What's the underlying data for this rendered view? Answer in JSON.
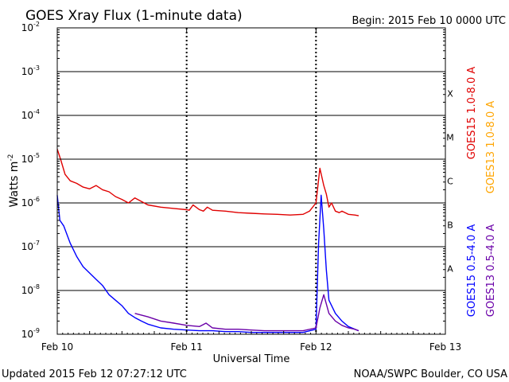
{
  "header": {
    "title": "GOES Xray Flux (1-minute data)",
    "begin": "Begin:  2015 Feb 10 0000 UTC"
  },
  "footer": {
    "updated": "Updated 2015 Feb 12 07:27:12 UTC",
    "credit": "NOAA/SWPC Boulder, CO USA"
  },
  "colors": {
    "goes15_long": "#e00000",
    "goes13_long": "#ffa500",
    "goes15_short": "#0000ff",
    "goes13_short": "#6a00a8"
  },
  "chart_data": {
    "type": "line",
    "title": "GOES Xray Flux (1-minute data)",
    "xlabel": "Universal Time",
    "ylabel": "Watts m",
    "ylabel_exponent": "-2",
    "yscale": "log",
    "ylim": [
      1e-09,
      0.01
    ],
    "xlim": [
      "Feb 10",
      "Feb 13"
    ],
    "x_ticks": [
      "Feb 10",
      "Feb 11",
      "Feb 12",
      "Feb 13"
    ],
    "y_tick_labels": [
      {
        "base": "10",
        "exp": "-9"
      },
      {
        "base": "10",
        "exp": "-8"
      },
      {
        "base": "10",
        "exp": "-7"
      },
      {
        "base": "10",
        "exp": "-6"
      },
      {
        "base": "10",
        "exp": "-5"
      },
      {
        "base": "10",
        "exp": "-4"
      },
      {
        "base": "10",
        "exp": "-3"
      },
      {
        "base": "10",
        "exp": "-2"
      }
    ],
    "flare_classes": [
      {
        "label": "A",
        "level": 1e-08
      },
      {
        "label": "B",
        "level": 1e-07
      },
      {
        "label": "C",
        "level": 1e-06
      },
      {
        "label": "M",
        "level": 1e-05
      },
      {
        "label": "X",
        "level": 0.0001
      }
    ],
    "grid": true,
    "legend": [
      {
        "name": "GOES15 1.0-8.0 A",
        "color": "#e00000"
      },
      {
        "name": "GOES13 1.0-8.0 A",
        "color": "#ffa500"
      },
      {
        "name": "GOES15 0.5-4.0 A",
        "color": "#0000ff"
      },
      {
        "name": "GOES13 0.5-4.0 A",
        "color": "#6a00a8"
      }
    ],
    "series": [
      {
        "name": "GOES15 1.0-8.0 A",
        "color": "#e00000",
        "x": [
          0,
          0.03,
          0.06,
          0.1,
          0.15,
          0.2,
          0.25,
          0.3,
          0.35,
          0.4,
          0.45,
          0.5,
          0.55,
          0.6,
          0.7,
          0.8,
          0.9,
          1.0,
          1.02,
          1.05,
          1.1,
          1.13,
          1.16,
          1.2,
          1.3,
          1.4,
          1.5,
          1.6,
          1.7,
          1.8,
          1.9,
          1.95,
          2.0,
          2.03,
          2.06,
          2.08,
          2.1,
          2.12,
          2.15,
          2.18,
          2.2,
          2.25,
          2.3,
          2.33
        ],
        "y": [
          1.7e-05,
          9e-06,
          4.5e-06,
          3.2e-06,
          2.8e-06,
          2.3e-06,
          2.1e-06,
          2.5e-06,
          2e-06,
          1.8e-06,
          1.4e-06,
          1.2e-06,
          1e-06,
          1.3e-06,
          9e-07,
          8e-07,
          7.5e-07,
          7e-07,
          6.8e-07,
          9e-07,
          7e-07,
          6.5e-07,
          8e-07,
          6.8e-07,
          6.5e-07,
          6e-07,
          5.8e-07,
          5.6e-07,
          5.5e-07,
          5.3e-07,
          5.5e-07,
          6.5e-07,
          1e-06,
          6.2e-06,
          2.5e-06,
          1.6e-06,
          8e-07,
          1e-06,
          6.5e-07,
          6e-07,
          6.5e-07,
          5.5e-07,
          5.3e-07,
          5.1e-07
        ]
      },
      {
        "name": "GOES15 0.5-4.0 A",
        "color": "#0000ff",
        "x": [
          0,
          0.02,
          0.05,
          0.1,
          0.15,
          0.2,
          0.25,
          0.3,
          0.35,
          0.4,
          0.45,
          0.5,
          0.55,
          0.6,
          0.65,
          0.7,
          0.8,
          0.9,
          1.0,
          1.1,
          1.2,
          1.3,
          1.4,
          1.5,
          1.6,
          1.7,
          1.8,
          1.9,
          2.0,
          2.02,
          2.04,
          2.06,
          2.08,
          2.1,
          2.15,
          2.2,
          2.25,
          2.3,
          2.33
        ],
        "y": [
          1.5e-06,
          4e-07,
          3e-07,
          1.2e-07,
          6e-08,
          3.5e-08,
          2.5e-08,
          1.8e-08,
          1.3e-08,
          8e-09,
          6e-09,
          4.5e-09,
          3e-09,
          2.4e-09,
          2e-09,
          1.7e-09,
          1.4e-09,
          1.3e-09,
          1.25e-09,
          1.2e-09,
          1.2e-09,
          1.15e-09,
          1.15e-09,
          1.1e-09,
          1.1e-09,
          1.1e-09,
          1.1e-09,
          1.1e-09,
          1.3e-09,
          1.2e-07,
          1.5e-06,
          2.5e-07,
          3e-08,
          6e-09,
          3e-09,
          2e-09,
          1.5e-09,
          1.3e-09,
          1.2e-09
        ]
      },
      {
        "name": "GOES13 0.5-4.0 A",
        "color": "#6a00a8",
        "x": [
          0.6,
          0.7,
          0.8,
          0.9,
          1.0,
          1.1,
          1.15,
          1.2,
          1.3,
          1.4,
          1.5,
          1.6,
          1.7,
          1.8,
          1.9,
          2.0,
          2.03,
          2.06,
          2.1,
          2.15,
          2.2,
          2.25,
          2.3,
          2.33
        ],
        "y": [
          3e-09,
          2.5e-09,
          2e-09,
          1.8e-09,
          1.6e-09,
          1.5e-09,
          1.8e-09,
          1.4e-09,
          1.3e-09,
          1.3e-09,
          1.25e-09,
          1.2e-09,
          1.2e-09,
          1.2e-09,
          1.2e-09,
          1.4e-09,
          4e-09,
          8e-09,
          3e-09,
          2e-09,
          1.6e-09,
          1.4e-09,
          1.3e-09,
          1.2e-09
        ]
      }
    ]
  }
}
